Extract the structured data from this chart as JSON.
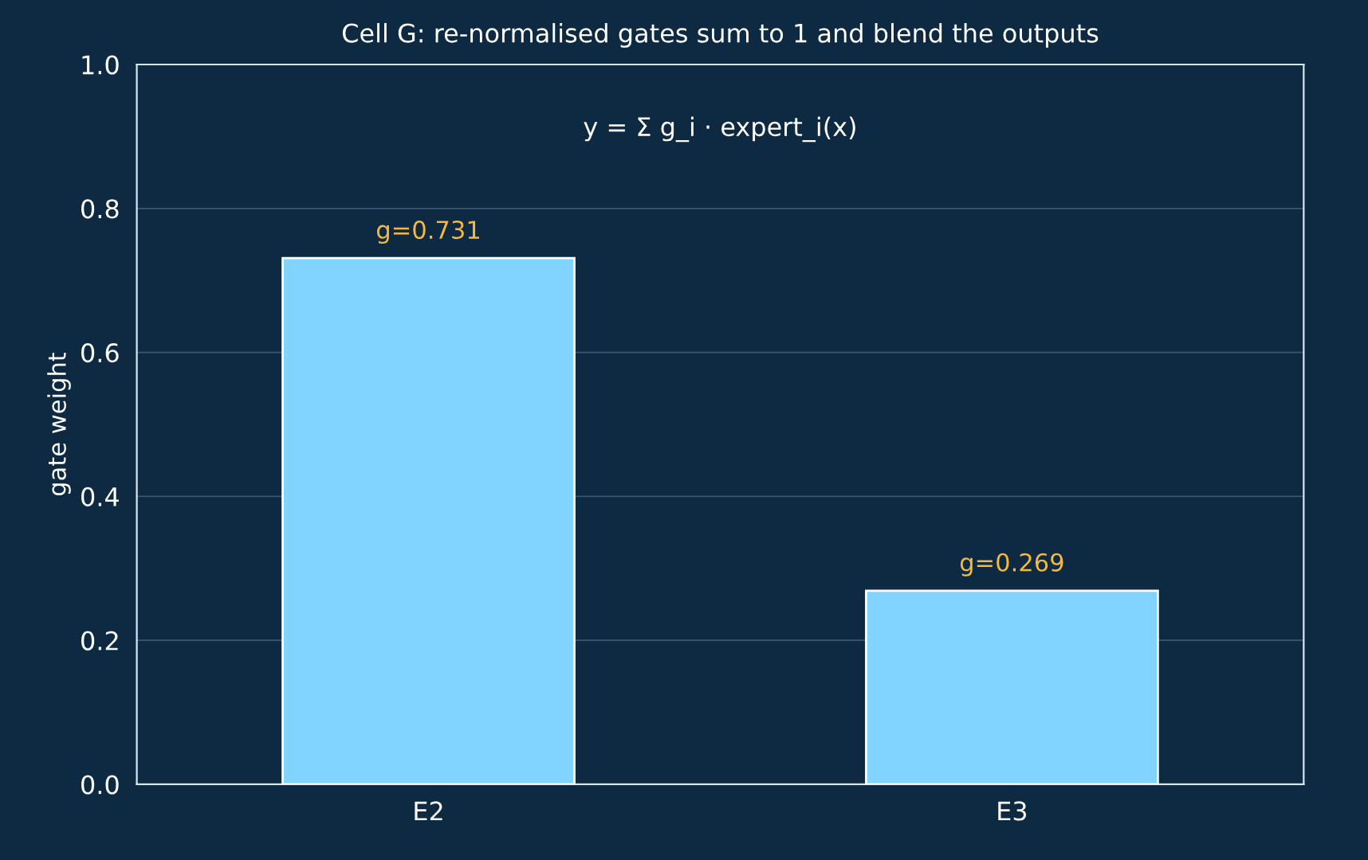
{
  "chart_data": {
    "type": "bar",
    "title": "Cell G: re-normalised gates sum to 1 and blend the outputs",
    "ylabel": "gate weight",
    "categories": [
      "E2",
      "E3"
    ],
    "values": [
      0.731,
      0.269
    ],
    "color": "#80d4ff",
    "value_labels": [
      "g=0.731",
      "g=0.269"
    ],
    "ylim": [
      0,
      1.0
    ],
    "yticks": [
      {
        "value": 0,
        "label": "0.0"
      },
      0.2,
      0.4,
      0.6,
      0.8,
      {
        "value": 1,
        "label": "1.0"
      }
    ],
    "grid": "y",
    "annotations": [
      "y = Σ g_i · expert_i(x)"
    ]
  }
}
